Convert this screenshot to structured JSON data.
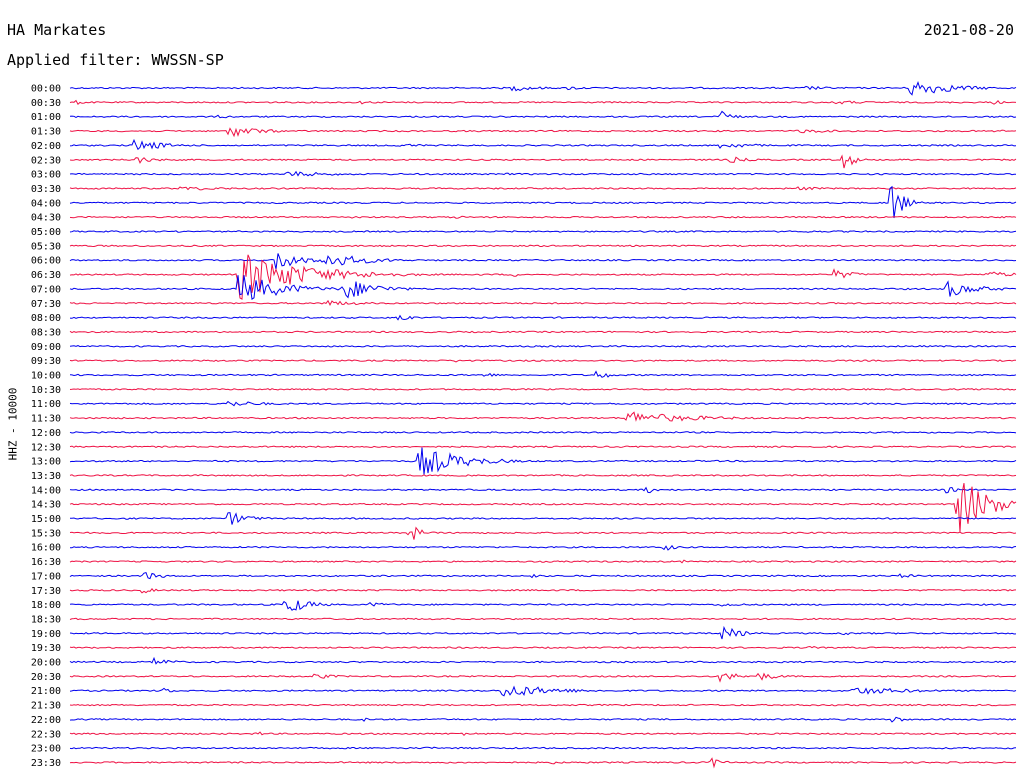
{
  "header": {
    "station": "HA Markates",
    "date": "2021-08-20",
    "filter": "Applied filter: WWSSN-SP"
  },
  "chart_data": {
    "type": "line",
    "title": "HA Markates",
    "ylabel": "HHZ - 10000",
    "colors": [
      "#0000ee",
      "#ee1144"
    ],
    "row_labels": [
      "00:00",
      "00:30",
      "01:00",
      "01:30",
      "02:00",
      "02:30",
      "03:00",
      "03:30",
      "04:00",
      "04:30",
      "05:00",
      "05:30",
      "06:00",
      "06:30",
      "07:00",
      "07:30",
      "08:00",
      "08:30",
      "09:00",
      "09:30",
      "10:00",
      "10:30",
      "11:00",
      "11:30",
      "12:00",
      "12:30",
      "13:00",
      "13:30",
      "14:00",
      "14:30",
      "15:00",
      "15:30",
      "16:00",
      "16:30",
      "17:00",
      "17:30",
      "18:00",
      "18:30",
      "19:00",
      "19:30",
      "20:00",
      "20:30",
      "21:00",
      "21:30",
      "22:00",
      "22:30",
      "23:00",
      "23:30"
    ],
    "bursts": [
      [
        {
          "t": 0.47,
          "a": 3,
          "d": 0.03
        },
        {
          "t": 0.53,
          "a": 2,
          "d": 0.02
        },
        {
          "t": 0.78,
          "a": 2,
          "d": 0.03
        },
        {
          "t": 0.89,
          "a": 9,
          "d": 0.04
        }
      ],
      [
        {
          "t": 0.01,
          "a": 2,
          "d": 0.01
        },
        {
          "t": 0.31,
          "a": 1.5,
          "d": 0.02
        },
        {
          "t": 0.81,
          "a": 2,
          "d": 0.04
        },
        {
          "t": 0.98,
          "a": 2,
          "d": 0.01
        }
      ],
      [
        {
          "t": 0.16,
          "a": 1.5,
          "d": 0.02
        },
        {
          "t": 0.69,
          "a": 7,
          "d": 0.01
        }
      ],
      [
        {
          "t": 0.17,
          "a": 6,
          "d": 0.03
        },
        {
          "t": 0.77,
          "a": 2,
          "d": 0.05
        },
        {
          "t": 0.98,
          "a": 2,
          "d": 0.01
        }
      ],
      [
        {
          "t": 0.07,
          "a": 6,
          "d": 0.03
        },
        {
          "t": 0.35,
          "a": 2,
          "d": 0.03
        },
        {
          "t": 0.69,
          "a": 3,
          "d": 0.04
        }
      ],
      [
        {
          "t": 0.07,
          "a": 4,
          "d": 0.02
        },
        {
          "t": 0.7,
          "a": 3,
          "d": 0.02
        },
        {
          "t": 0.82,
          "a": 9,
          "d": 0.01
        }
      ],
      [
        {
          "t": 0.23,
          "a": 3,
          "d": 0.05
        },
        {
          "t": 0.46,
          "a": 1.5,
          "d": 0.01
        }
      ],
      [
        {
          "t": 0.12,
          "a": 2,
          "d": 0.06
        },
        {
          "t": 0.77,
          "a": 2,
          "d": 0.03
        }
      ],
      [
        {
          "t": 0.87,
          "a": 22,
          "d": 0.01
        }
      ],
      [
        {
          "t": 0.3,
          "a": 1.5,
          "d": 0.01
        },
        {
          "t": 0.41,
          "a": 1.5,
          "d": 0.01
        }
      ],
      [
        {
          "t": 0.78,
          "a": 1.5,
          "d": 0.01
        }
      ],
      [],
      [
        {
          "t": 0.22,
          "a": 12,
          "d": 0.02
        },
        {
          "t": 0.27,
          "a": 8,
          "d": 0.04
        }
      ],
      [
        {
          "t": 0.18,
          "a": 26,
          "d": 0.06
        },
        {
          "t": 0.47,
          "a": 2,
          "d": 0.01
        },
        {
          "t": 0.81,
          "a": 5,
          "d": 0.02
        },
        {
          "t": 0.97,
          "a": 3,
          "d": 0.04
        }
      ],
      [
        {
          "t": 0.18,
          "a": 16,
          "d": 0.04
        },
        {
          "t": 0.29,
          "a": 12,
          "d": 0.03
        },
        {
          "t": 0.93,
          "a": 8,
          "d": 0.03
        }
      ],
      [
        {
          "t": 0.27,
          "a": 3,
          "d": 0.04
        }
      ],
      [
        {
          "t": 0.35,
          "a": 5,
          "d": 0.01
        }
      ],
      [],
      [],
      [
        {
          "t": 0.41,
          "a": 1.5,
          "d": 0.02
        }
      ],
      [
        {
          "t": 0.44,
          "a": 3,
          "d": 0.01
        },
        {
          "t": 0.56,
          "a": 5,
          "d": 0.01
        }
      ],
      [],
      [
        {
          "t": 0.17,
          "a": 3,
          "d": 0.04
        }
      ],
      [
        {
          "t": 0.59,
          "a": 7,
          "d": 0.06
        }
      ],
      [],
      [],
      [
        {
          "t": 0.37,
          "a": 16,
          "d": 0.04
        }
      ],
      [],
      [
        {
          "t": 0.61,
          "a": 4,
          "d": 0.01
        },
        {
          "t": 0.93,
          "a": 3,
          "d": 0.01
        }
      ],
      [
        {
          "t": 0.94,
          "a": 30,
          "d": 0.03
        }
      ],
      [
        {
          "t": 0.17,
          "a": 7,
          "d": 0.02
        }
      ],
      [
        {
          "t": 0.36,
          "a": 10,
          "d": 0.01
        }
      ],
      [
        {
          "t": 0.63,
          "a": 4,
          "d": 0.01
        }
      ],
      [
        {
          "t": 0.65,
          "a": 1.5,
          "d": 0.01
        }
      ],
      [
        {
          "t": 0.08,
          "a": 4,
          "d": 0.02
        },
        {
          "t": 0.49,
          "a": 2,
          "d": 0.01
        },
        {
          "t": 0.88,
          "a": 2,
          "d": 0.02
        }
      ],
      [
        {
          "t": 0.08,
          "a": 3,
          "d": 0.01
        }
      ],
      [
        {
          "t": 0.23,
          "a": 10,
          "d": 0.02
        },
        {
          "t": 0.32,
          "a": 2,
          "d": 0.03
        },
        {
          "t": 0.69,
          "a": 2,
          "d": 0.03
        }
      ],
      [],
      [
        {
          "t": 0.69,
          "a": 7,
          "d": 0.02
        },
        {
          "t": 0.82,
          "a": 2,
          "d": 0.01
        }
      ],
      [
        {
          "t": 0.78,
          "a": 1.5,
          "d": 0.02
        }
      ],
      [
        {
          "t": 0.09,
          "a": 4,
          "d": 0.02
        }
      ],
      [
        {
          "t": 0.26,
          "a": 3,
          "d": 0.02
        },
        {
          "t": 0.69,
          "a": 5,
          "d": 0.02
        },
        {
          "t": 0.73,
          "a": 4,
          "d": 0.02
        }
      ],
      [
        {
          "t": 0.1,
          "a": 3,
          "d": 0.01
        },
        {
          "t": 0.46,
          "a": 7,
          "d": 0.05
        },
        {
          "t": 0.83,
          "a": 4,
          "d": 0.06
        }
      ],
      [],
      [
        {
          "t": 0.31,
          "a": 2,
          "d": 0.01
        },
        {
          "t": 0.87,
          "a": 4,
          "d": 0.01
        }
      ],
      [
        {
          "t": 0.2,
          "a": 2,
          "d": 0.01
        },
        {
          "t": 0.41,
          "a": 2,
          "d": 0.03
        }
      ],
      [
        {
          "t": 0.38,
          "a": 1.5,
          "d": 0.01
        }
      ],
      [
        {
          "t": 0.51,
          "a": 2,
          "d": 0.01
        },
        {
          "t": 0.68,
          "a": 5,
          "d": 0.01
        }
      ]
    ]
  }
}
